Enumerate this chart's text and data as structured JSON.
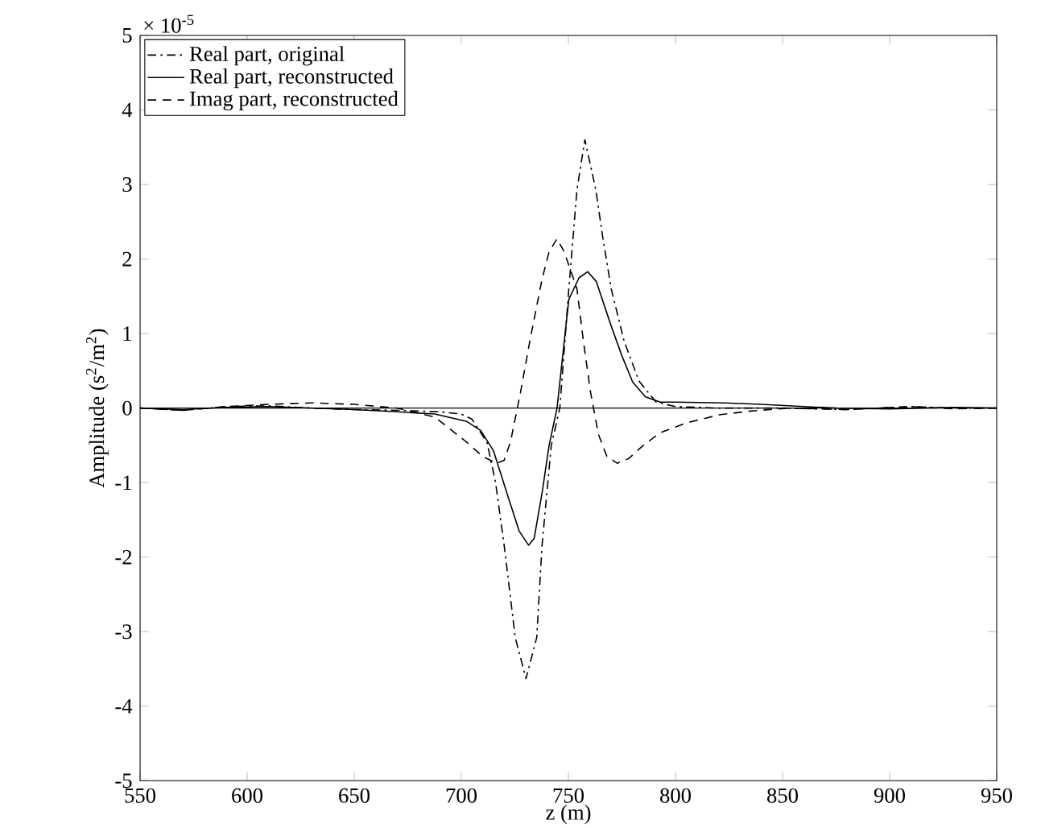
{
  "chart_data": {
    "type": "line",
    "xlabel": "z (m)",
    "ylabel": "Amplitude (s$^{2}$/m$^{2}$)",
    "annotations": [
      "× 10$^{-5}$"
    ],
    "xlim": [
      550,
      950
    ],
    "xticks": [
      550,
      600,
      650,
      700,
      750,
      800,
      850,
      900,
      950
    ],
    "ylim": [
      -5,
      5
    ],
    "yticks": [
      -5,
      -4,
      -3,
      -2,
      -1,
      0,
      1,
      2,
      3,
      4,
      5
    ],
    "legend": "top left",
    "marker": "none",
    "ref_lines": [
      {
        "axis": "y",
        "value": 0,
        "color": "#000000",
        "line_style": "solid"
      }
    ],
    "series": [
      {
        "name": "Real part, original",
        "color": "#000000",
        "line_style": "dashdot",
        "x": [
          550,
          570,
          590,
          610,
          630,
          650,
          670,
          690,
          700,
          705,
          712,
          716,
          720,
          725.2,
          730.2,
          735.2,
          737.7,
          742,
          746,
          750.2,
          754,
          757.7,
          762.8,
          766,
          770,
          776,
          783,
          791,
          800,
          820,
          850,
          880,
          910,
          930,
          950
        ],
        "values": [
          0,
          -0.03,
          0.02,
          0.03,
          0,
          -0.02,
          -0.03,
          -0.05,
          -0.08,
          -0.15,
          -0.46,
          -1.0,
          -1.84,
          -3.08,
          -3.63,
          -3.08,
          -1.84,
          -0.5,
          0,
          1.6,
          2.93,
          3.6,
          2.93,
          2.3,
          1.6,
          0.9,
          0.36,
          0.08,
          0.02,
          0,
          0,
          -0.02,
          0.02,
          0,
          0
        ]
      },
      {
        "name": "Real part, reconstructed",
        "color": "#000000",
        "line_style": "solid",
        "x": [
          550,
          570,
          590,
          610,
          630,
          650,
          670,
          687.6,
          702.6,
          709,
          715,
          722.5,
          727,
          731.4,
          734,
          737.7,
          741,
          744.7,
          750.2,
          755,
          759,
          763,
          770,
          775,
          780,
          786,
          792.9,
          800,
          823,
          840,
          860,
          875,
          900,
          930,
          950
        ],
        "values": [
          0,
          -0.02,
          0.01,
          0.02,
          0,
          -0.02,
          -0.05,
          -0.08,
          -0.18,
          -0.3,
          -0.57,
          -1.25,
          -1.65,
          -1.84,
          -1.75,
          -1.14,
          -0.5,
          0,
          1.46,
          1.75,
          1.83,
          1.7,
          1.1,
          0.7,
          0.35,
          0.15,
          0.08,
          0.08,
          0.07,
          0.05,
          0.02,
          0,
          -0.01,
          0.01,
          0
        ]
      },
      {
        "name": "Imag part, reconstructed",
        "color": "#000000",
        "line_style": "dashed",
        "x": [
          550,
          570,
          590,
          610,
          630,
          650,
          670,
          687.6,
          702.6,
          710,
          716.4,
          720,
          723,
          727.7,
          732,
          737.7,
          741,
          744.7,
          748,
          754,
          757,
          760.3,
          764,
          768,
          772.8,
          778,
          785,
          792.9,
          805,
          820.5,
          835,
          853,
          880,
          910,
          930,
          950
        ],
        "values": [
          0,
          -0.03,
          0.02,
          0.05,
          0.07,
          0.05,
          0,
          -0.12,
          -0.46,
          -0.65,
          -0.74,
          -0.7,
          -0.45,
          0.22,
          0.9,
          1.73,
          2.1,
          2.27,
          2.1,
          1.6,
          0.9,
          0.22,
          -0.35,
          -0.65,
          -0.74,
          -0.68,
          -0.5,
          -0.33,
          -0.2,
          -0.09,
          -0.04,
          0,
          -0.02,
          0.02,
          -0.01,
          0
        ]
      }
    ]
  }
}
